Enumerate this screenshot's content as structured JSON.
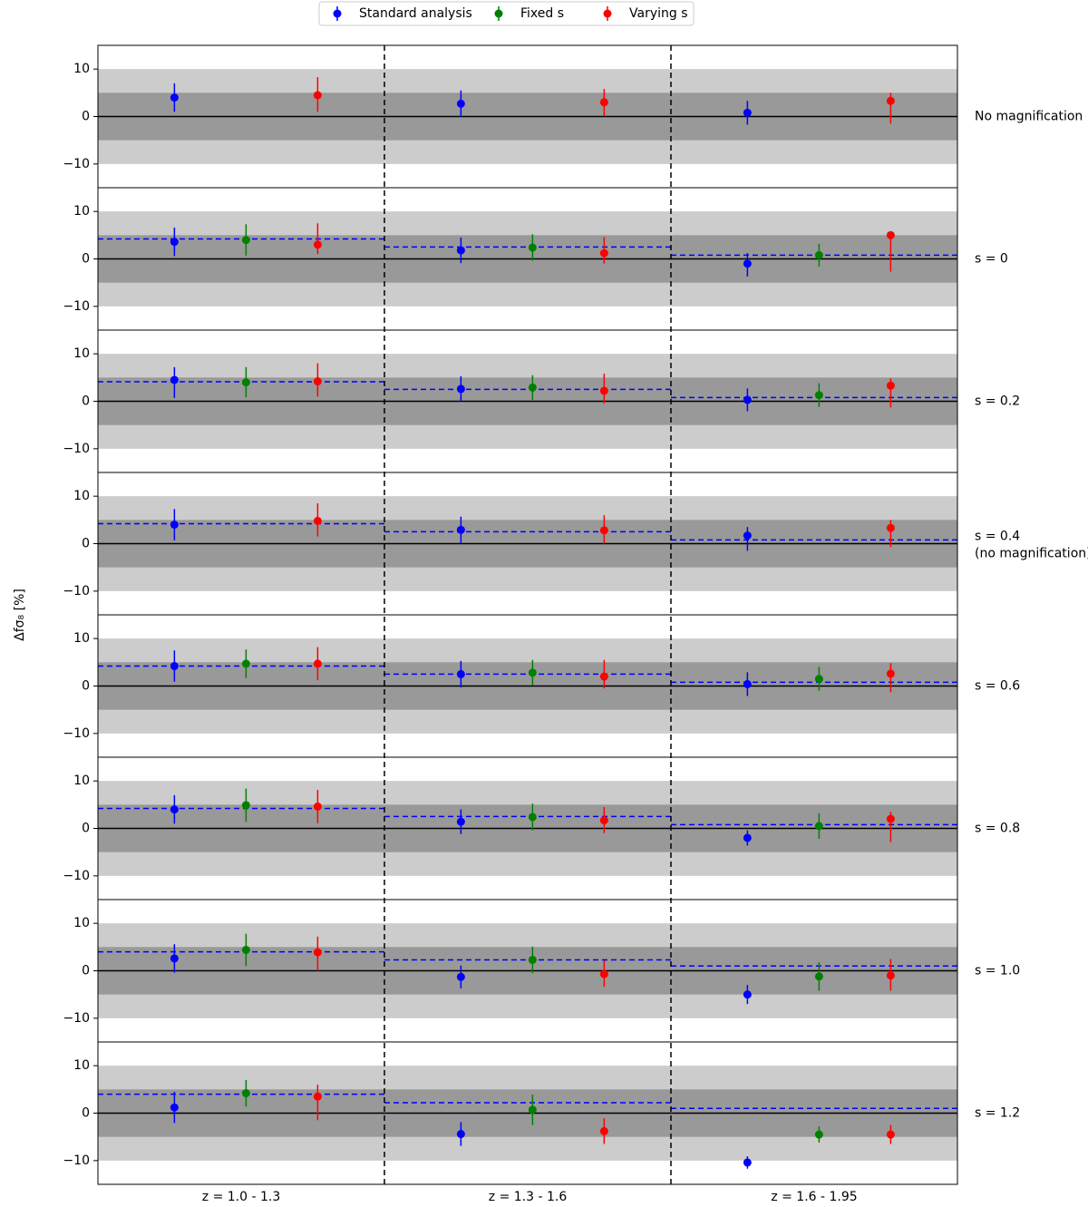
{
  "chart_data": {
    "type": "errorbar",
    "ylabel": "Δfσ₈ [%]",
    "categories": [
      "z = 1.0 - 1.3",
      "z = 1.3 - 1.6",
      "z = 1.6 - 1.95"
    ],
    "series": [
      {
        "name": "Standard analysis",
        "color": "#0000ff"
      },
      {
        "name": "Fixed s",
        "color": "#008000"
      },
      {
        "name": "Varying s",
        "color": "#ff0000"
      }
    ],
    "ylim": [
      -15,
      15
    ],
    "yticks": [
      {
        "value": -10,
        "label": "−10"
      },
      0,
      10
    ],
    "bands": [
      5,
      10
    ],
    "reference_color": "#0000ff",
    "panels": [
      {
        "label": "No magnification",
        "reference": null,
        "series": [
          {
            "values": [
              4,
              2.7,
              0.8
            ],
            "errors": [
              [
                3,
                3
              ],
              [
                2.8,
                2.8
              ],
              [
                2.5,
                2.5
              ]
            ]
          },
          {
            "values": [
              null,
              null,
              null
            ],
            "errors": [
              null,
              null,
              null
            ]
          },
          {
            "values": [
              4.5,
              3,
              3.3
            ],
            "errors": [
              [
                3.5,
                3.8
              ],
              [
                2.8,
                2.8
              ],
              [
                4.8,
                1.7
              ]
            ]
          }
        ]
      },
      {
        "label": "s = 0",
        "reference": [
          4.2,
          2.5,
          0.8
        ],
        "series": [
          {
            "values": [
              3.6,
              1.8,
              -1
            ],
            "errors": [
              [
                3,
                3
              ],
              [
                2.7,
                2.7
              ],
              [
                2.7,
                2.2
              ]
            ]
          },
          {
            "values": [
              4,
              2.4,
              0.8
            ],
            "errors": [
              [
                3.3,
                3.3
              ],
              [
                2.8,
                2.8
              ],
              [
                2.4,
                2.4
              ]
            ]
          },
          {
            "values": [
              3,
              1.2,
              5
            ],
            "errors": [
              [
                2,
                4.5
              ],
              [
                2.2,
                3.4
              ],
              [
                7.7,
                0.2
              ]
            ]
          }
        ]
      },
      {
        "label": "s = 0.2",
        "reference": [
          4.1,
          2.5,
          0.8
        ],
        "series": [
          {
            "values": [
              4.5,
              2.6,
              0.3
            ],
            "errors": [
              [
                3.8,
                2.7
              ],
              [
                2.7,
                2.7
              ],
              [
                2.4,
                2.4
              ]
            ]
          },
          {
            "values": [
              4,
              2.9,
              1.3
            ],
            "errors": [
              [
                3.2,
                3.2
              ],
              [
                2.6,
                2.6
              ],
              [
                2.5,
                2.5
              ]
            ]
          },
          {
            "values": [
              4.2,
              2.2,
              3.3
            ],
            "errors": [
              [
                3.2,
                3.8
              ],
              [
                2.7,
                3.6
              ],
              [
                4.6,
                1.5
              ]
            ]
          }
        ]
      },
      {
        "label": [
          "s = 0.4",
          "(no magnification)"
        ],
        "reference": [
          4.2,
          2.5,
          0.8
        ],
        "series": [
          {
            "values": [
              4,
              2.9,
              1.7
            ],
            "errors": [
              [
                3.3,
                3.3
              ],
              [
                2.8,
                2.8
              ],
              [
                3.2,
                1.8
              ]
            ]
          },
          {
            "values": [
              null,
              null,
              null
            ],
            "errors": [
              null,
              null,
              null
            ]
          },
          {
            "values": [
              4.8,
              2.8,
              3.3
            ],
            "errors": [
              [
                3.3,
                3.7
              ],
              [
                2.8,
                3.2
              ],
              [
                4,
                1.7
              ]
            ]
          }
        ]
      },
      {
        "label": "s = 0.6",
        "reference": [
          4.2,
          2.5,
          0.8
        ],
        "series": [
          {
            "values": [
              4.2,
              2.5,
              0.4
            ],
            "errors": [
              [
                3.3,
                3.3
              ],
              [
                2.8,
                2.8
              ],
              [
                2.5,
                2.5
              ]
            ]
          },
          {
            "values": [
              4.7,
              2.8,
              1.5
            ],
            "errors": [
              [
                3,
                3
              ],
              [
                2.7,
                2.7
              ],
              [
                2.5,
                2.5
              ]
            ]
          },
          {
            "values": [
              4.7,
              2,
              2.6
            ],
            "errors": [
              [
                3.5,
                3.5
              ],
              [
                2.5,
                3.5
              ],
              [
                3.9,
                2.2
              ]
            ]
          }
        ]
      },
      {
        "label": "s = 0.8",
        "reference": [
          4.2,
          2.5,
          0.8
        ],
        "series": [
          {
            "values": [
              4,
              1.4,
              -2
            ],
            "errors": [
              [
                3,
                3
              ],
              [
                2.6,
                2.6
              ],
              [
                1.6,
                1.6
              ]
            ]
          },
          {
            "values": [
              4.9,
              2.4,
              0.5
            ],
            "errors": [
              [
                3.5,
                3.5
              ],
              [
                2.8,
                2.8
              ],
              [
                2.7,
                2.7
              ]
            ]
          },
          {
            "values": [
              4.6,
              1.7,
              2
            ],
            "errors": [
              [
                3.5,
                3.5
              ],
              [
                2.7,
                2.8
              ],
              [
                4.9,
                1.5
              ]
            ]
          }
        ]
      },
      {
        "label": "s = 1.0",
        "reference": [
          4,
          2.3,
          1
        ],
        "series": [
          {
            "values": [
              2.6,
              -1.3,
              -5
            ],
            "errors": [
              [
                3,
                3
              ],
              [
                2.4,
                2.4
              ],
              [
                2,
                2
              ]
            ]
          },
          {
            "values": [
              4.4,
              2.3,
              -1.2
            ],
            "errors": [
              [
                3.4,
                3.4
              ],
              [
                2.8,
                2.8
              ],
              [
                3,
                3
              ]
            ]
          },
          {
            "values": [
              3.9,
              -0.7,
              -1
            ],
            "errors": [
              [
                3.9,
                3.3
              ],
              [
                2.7,
                2.9
              ],
              [
                3.2,
                3.5
              ]
            ]
          }
        ]
      },
      {
        "label": "s = 1.2",
        "reference": [
          4,
          2.2,
          1
        ],
        "series": [
          {
            "values": [
              1.2,
              -4.4,
              -10.4
            ],
            "errors": [
              [
                3.3,
                3.3
              ],
              [
                2.5,
                2.5
              ],
              [
                1.3,
                1.3
              ]
            ]
          },
          {
            "values": [
              4.2,
              0.7,
              -4.5
            ],
            "errors": [
              [
                2.8,
                2.8
              ],
              [
                3.2,
                3.2
              ],
              [
                1.7,
                1.7
              ]
            ]
          },
          {
            "values": [
              3.5,
              -3.8,
              -4.5
            ],
            "errors": [
              [
                5,
                2.5
              ],
              [
                2.7,
                2.7
              ],
              [
                2,
                2
              ]
            ]
          }
        ]
      }
    ]
  }
}
